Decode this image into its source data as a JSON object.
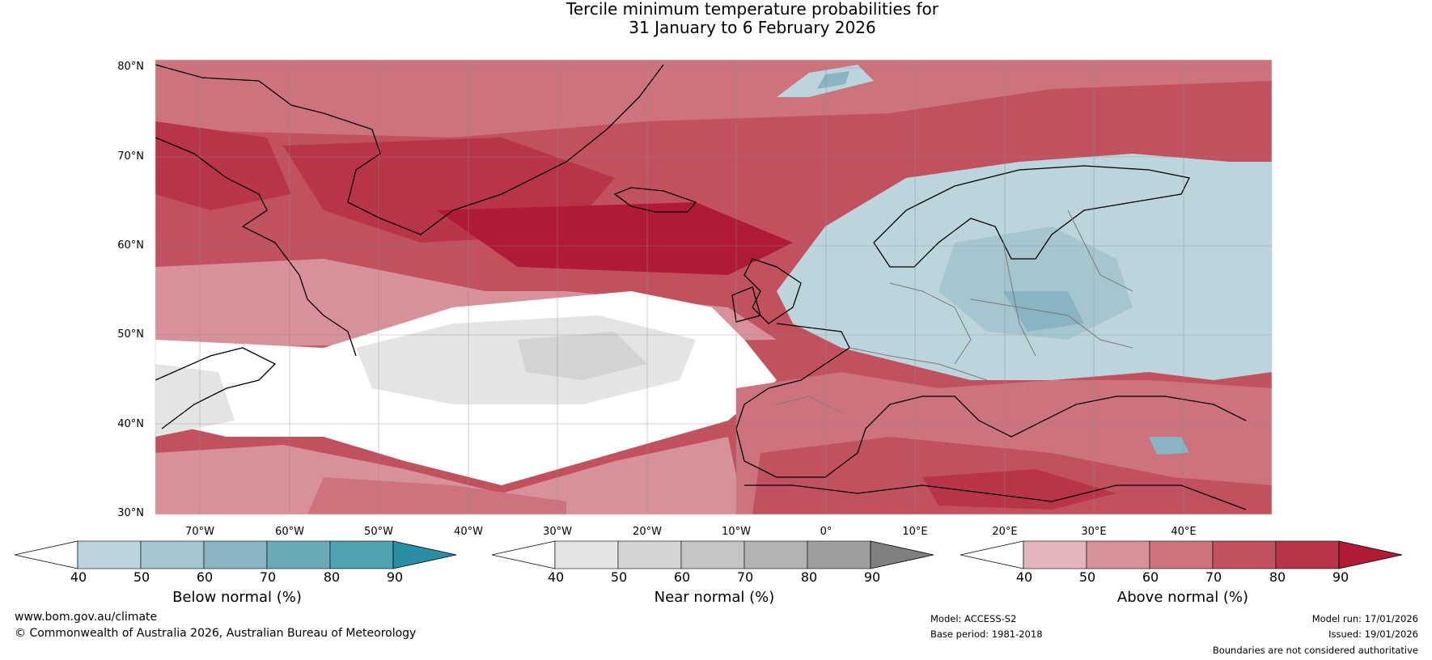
{
  "title": {
    "line1": "Tercile minimum temperature probabilities for",
    "line2": "31 January to 6 February 2026"
  },
  "map": {
    "lat_labels": [
      "80°N",
      "70°N",
      "60°N",
      "50°N",
      "40°N",
      "30°N"
    ],
    "lon_labels": [
      "70°W",
      "60°W",
      "50°W",
      "40°W",
      "30°W",
      "20°W",
      "10°W",
      "0°",
      "10°E",
      "20°E",
      "30°E",
      "40°E"
    ]
  },
  "colorbars": [
    {
      "name": "below",
      "label": "Below normal (%)",
      "ticks": [
        "40",
        "50",
        "60",
        "70",
        "80",
        "90"
      ],
      "colors": [
        "#ffffff",
        "#bcd4db",
        "#a6c6cf",
        "#88b4c3",
        "#6aaab8",
        "#4ea2b2",
        "#2a8fa4"
      ]
    },
    {
      "name": "near",
      "label": "Near normal (%)",
      "ticks": [
        "40",
        "50",
        "60",
        "70",
        "80",
        "90"
      ],
      "colors": [
        "#ffffff",
        "#e4e4e4",
        "#d3d3d3",
        "#c5c5c5",
        "#b2b4b4",
        "#9e9e9e",
        "#808080"
      ]
    },
    {
      "name": "above",
      "label": "Above normal (%)",
      "ticks": [
        "40",
        "50",
        "60",
        "70",
        "80",
        "90"
      ],
      "colors": [
        "#ffffff",
        "#e4b4bc",
        "#d89199",
        "#cc737e",
        "#c25160",
        "#b83449",
        "#b01a37"
      ]
    }
  ],
  "footer": {
    "website": "www.bom.gov.au/climate",
    "copyright": "© Commonwealth of Australia 2026, Australian Bureau of Meteorology",
    "model": "Model: ACCESS-S2",
    "base_period": "Base period: 1981-2018",
    "model_run": "Model run: 17/01/2026",
    "issued": "Issued: 19/01/2026",
    "disclaimer": "Boundaries are not considered authoritative"
  }
}
